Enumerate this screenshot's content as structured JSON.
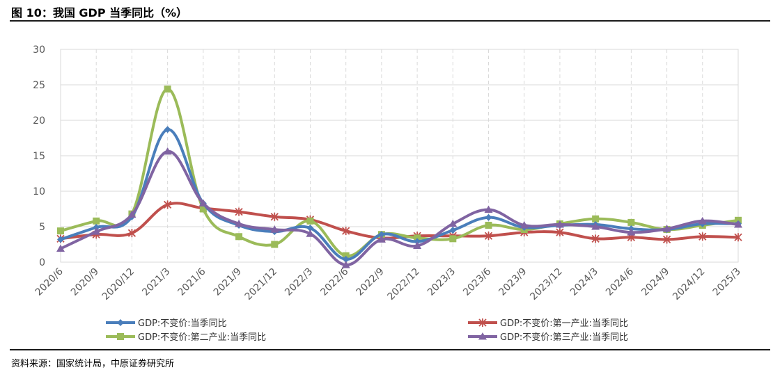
{
  "header": {
    "title": "图 10：我国 GDP 当季同比（%）"
  },
  "footer": {
    "source": "资料来源：国家统计局，中原证券研究所"
  },
  "chart_data": {
    "type": "line",
    "title": "我国 GDP 当季同比（%）",
    "xlabel": "",
    "ylabel": "",
    "ylim": [
      0,
      30
    ],
    "yticks": [
      0,
      5,
      10,
      15,
      20,
      25,
      30
    ],
    "grid": true,
    "categories": [
      "2020/6",
      "2020/9",
      "2020/12",
      "2021/3",
      "2021/6",
      "2021/9",
      "2021/12",
      "2022/3",
      "2022/6",
      "2022/9",
      "2022/12",
      "2023/3",
      "2023/6",
      "2023/9",
      "2023/12",
      "2024/3",
      "2024/6",
      "2024/9",
      "2024/12",
      "2025/3"
    ],
    "series": [
      {
        "name": "GDP:不变价:当季同比",
        "color": "#4a7ebb",
        "marker": "diamond",
        "values": [
          3.2,
          4.9,
          6.4,
          18.7,
          8.3,
          5.2,
          4.3,
          4.8,
          0.4,
          3.9,
          2.9,
          4.5,
          6.3,
          4.9,
          5.2,
          5.3,
          4.7,
          4.6,
          5.4,
          5.4
        ]
      },
      {
        "name": "GDP:不变价:第一产业:当季同比",
        "color": "#c0504d",
        "marker": "star",
        "values": [
          3.3,
          3.9,
          4.1,
          8.1,
          7.6,
          7.1,
          6.4,
          6.0,
          4.4,
          3.4,
          3.7,
          3.7,
          3.7,
          4.2,
          4.2,
          3.3,
          3.5,
          3.2,
          3.6,
          3.5
        ]
      },
      {
        "name": "GDP:不变价:第二产业:当季同比",
        "color": "#9bbb59",
        "marker": "square",
        "values": [
          4.4,
          5.8,
          6.8,
          24.4,
          7.5,
          3.6,
          2.5,
          5.8,
          0.9,
          3.9,
          3.4,
          3.3,
          5.2,
          4.6,
          5.4,
          6.1,
          5.6,
          4.6,
          5.2,
          5.9
        ]
      },
      {
        "name": "GDP:不变价:第三产业:当季同比",
        "color": "#8064a2",
        "marker": "triangle",
        "values": [
          1.9,
          4.3,
          6.7,
          15.6,
          8.3,
          5.4,
          4.6,
          4.0,
          -0.4,
          3.2,
          2.3,
          5.4,
          7.4,
          5.2,
          5.3,
          5.0,
          4.2,
          4.7,
          5.8,
          5.3
        ]
      }
    ]
  }
}
